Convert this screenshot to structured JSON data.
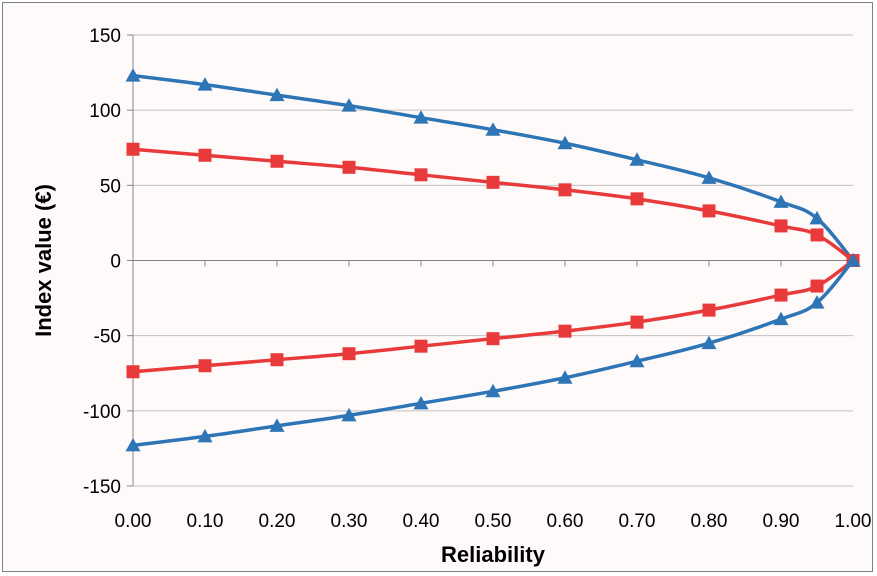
{
  "chart_data": {
    "type": "line",
    "xlabel": "Reliability",
    "ylabel": "Index value (€)",
    "xlim": [
      0,
      1
    ],
    "ylim": [
      -150,
      150
    ],
    "x_ticks": [
      0,
      0.1,
      0.2,
      0.3,
      0.4,
      0.5,
      0.6,
      0.7,
      0.8,
      0.9,
      1.0
    ],
    "x_tick_labels": [
      "0.00",
      "0.10",
      "0.20",
      "0.30",
      "0.40",
      "0.50",
      "0.60",
      "0.70",
      "0.80",
      "0.90",
      "1.00"
    ],
    "y_ticks": [
      -150,
      -100,
      -50,
      0,
      50,
      100,
      150
    ],
    "y_tick_labels": [
      "-150",
      "-100",
      "-50",
      "0",
      "50",
      "100",
      "150"
    ],
    "grid": "horizontal",
    "legend": "none",
    "x": [
      0.0,
      0.1,
      0.2,
      0.3,
      0.4,
      0.5,
      0.6,
      0.7,
      0.8,
      0.9,
      0.95,
      1.0
    ],
    "series": [
      {
        "color": "#2e75b6",
        "marker": "triangle",
        "values": [
          123,
          117,
          110,
          103,
          95,
          87,
          78,
          67,
          55,
          39,
          28,
          0
        ]
      },
      {
        "color": "#e83a3a",
        "marker": "square",
        "values": [
          74,
          70,
          66,
          62,
          57,
          52,
          47,
          41,
          33,
          23,
          17,
          0
        ]
      },
      {
        "color": "#e83a3a",
        "marker": "square",
        "values": [
          -74,
          -70,
          -66,
          -62,
          -57,
          -52,
          -47,
          -41,
          -33,
          -23,
          -17,
          0
        ]
      },
      {
        "color": "#2e75b6",
        "marker": "triangle",
        "values": [
          -123,
          -117,
          -110,
          -103,
          -95,
          -87,
          -78,
          -67,
          -55,
          -39,
          -28,
          0
        ]
      }
    ]
  }
}
